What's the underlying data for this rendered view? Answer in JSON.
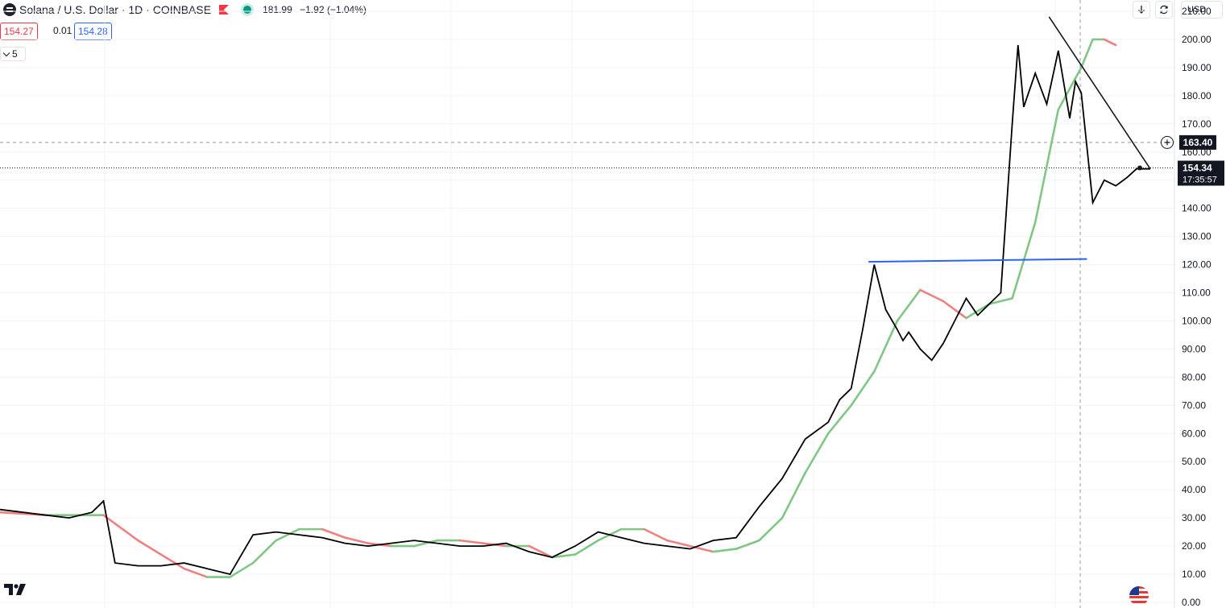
{
  "header": {
    "title": "Solana / U.S. Dollar · 1D · COINBASE",
    "ohlc_price": "181.99",
    "ohlc_change": "−1.92 (−1.04%)"
  },
  "trade": {
    "sell": "154.27",
    "spread": "0.01",
    "buy": "154.28"
  },
  "indicator": {
    "count": "5"
  },
  "toolbar": {
    "currency": "USD",
    "down_icon": "arrow-down-icon",
    "refresh_icon": "refresh-icon"
  },
  "colors": {
    "price_line": "#000000",
    "ma_rising": "#81c784",
    "ma_falling": "#f08080",
    "horizontal_line": "#2962ff",
    "trend_line": "#131722"
  },
  "markers": {
    "crosshair_price": "163.40",
    "last_price": "154.34",
    "countdown": "17:35:57"
  },
  "chart_data": {
    "type": "line",
    "ylim": [
      -2,
      214
    ],
    "y_ticks": [
      "210.00",
      "200.00",
      "190.00",
      "180.00",
      "170.00",
      "160.00",
      "150.00",
      "140.00",
      "130.00",
      "120.00",
      "110.00",
      "100.00",
      "90.00",
      "80.00",
      "70.00",
      "60.00",
      "50.00",
      "40.00",
      "30.00",
      "20.00",
      "10.00",
      "0.00"
    ],
    "x_range": [
      0,
      100
    ],
    "series": [
      {
        "role": "price",
        "x": [
          0,
          2,
          4,
          6,
          8,
          9,
          9.5,
          10,
          12,
          14,
          16,
          18,
          20,
          22,
          24,
          26,
          28,
          30,
          32,
          34,
          36,
          38,
          40,
          42,
          44,
          46,
          48,
          50,
          52,
          54,
          56,
          58,
          60,
          62,
          64,
          66,
          68,
          70,
          72,
          73,
          74,
          75,
          76,
          77,
          78,
          78.5,
          79,
          80,
          81,
          82,
          83,
          84,
          85,
          86,
          87,
          88,
          88.5,
          89,
          90,
          91,
          92,
          93,
          93.5,
          94,
          95,
          96,
          97,
          98,
          98.8,
          99.5,
          100
        ],
        "values": [
          33,
          32,
          31,
          30,
          32,
          36,
          25,
          14,
          13,
          13,
          14,
          12,
          10,
          24,
          25,
          24,
          23,
          21,
          20,
          21,
          22,
          21,
          20,
          20,
          21,
          18,
          16,
          20,
          25,
          23,
          21,
          20,
          19,
          22,
          23,
          34,
          44,
          58,
          64,
          72,
          76,
          97,
          120,
          104,
          97,
          93,
          96,
          90,
          86,
          92,
          100,
          108,
          102,
          106,
          110,
          170,
          198,
          176,
          188,
          177,
          196,
          172,
          185,
          181,
          142,
          150,
          148,
          151,
          154,
          154,
          154
        ]
      },
      {
        "role": "moving-average",
        "x": [
          0,
          4,
          9,
          12,
          16,
          18,
          20,
          22,
          24,
          26,
          28,
          30,
          32,
          34,
          36,
          38,
          40,
          42,
          44,
          46,
          48,
          50,
          52,
          54,
          56,
          58,
          60,
          62,
          64,
          66,
          68,
          70,
          72,
          74,
          76,
          78,
          80,
          82,
          84,
          86,
          88,
          90,
          92,
          94,
          95,
          96,
          97
        ],
        "values": [
          32,
          31,
          31,
          22,
          12,
          9,
          9,
          14,
          22,
          26,
          26,
          23,
          21,
          20,
          20,
          22,
          22,
          21,
          20,
          20,
          16,
          17,
          22,
          26,
          26,
          22,
          20,
          18,
          19,
          22,
          30,
          46,
          60,
          70,
          82,
          100,
          111,
          107,
          101,
          106,
          108,
          135,
          175,
          190,
          200,
          200,
          198
        ]
      }
    ],
    "annotations": [
      {
        "type": "horizontal-ray",
        "from": [
          75.5,
          121
        ],
        "to": [
          94.5,
          122
        ]
      },
      {
        "type": "trend-line",
        "from": [
          91.2,
          208
        ],
        "to": [
          100,
          154
        ]
      }
    ]
  }
}
